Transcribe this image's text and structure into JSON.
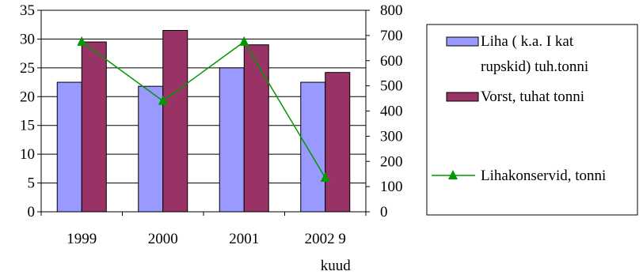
{
  "chart_data": {
    "type": "bar",
    "categories": [
      "1999",
      "2000",
      "2001",
      "2002 9\nkuud"
    ],
    "series": [
      {
        "name": "Liha ( k.a. I kat rupskid) tuh.tonni",
        "type": "bar",
        "axis": "left",
        "color": "#9999ff",
        "values": [
          22.5,
          21.8,
          25.0,
          22.5
        ]
      },
      {
        "name": "Vorst, tuhat tonni",
        "type": "bar",
        "axis": "left",
        "color": "#993366",
        "values": [
          29.5,
          31.5,
          29.0,
          24.2
        ]
      },
      {
        "name": "Lihakonservid, tonni",
        "type": "line",
        "axis": "right",
        "color": "#009900",
        "marker": "triangle",
        "values": [
          675,
          440,
          675,
          135
        ]
      }
    ],
    "left_axis": {
      "ylim": [
        0,
        35
      ],
      "ticks": [
        "0",
        "5",
        "10",
        "15",
        "20",
        "25",
        "30",
        "35"
      ]
    },
    "right_axis": {
      "ylim": [
        0,
        800
      ],
      "ticks": [
        "0",
        "100",
        "200",
        "300",
        "400",
        "500",
        "600",
        "700",
        "800"
      ]
    },
    "grid": true,
    "legend_position": "right",
    "legend": [
      {
        "label_lines": [
          "Liha ( k.a. I kat",
          "rupskid) tuh.tonni"
        ]
      },
      {
        "label_lines": [
          "Vorst, tuhat tonni"
        ]
      },
      {
        "label_lines": [
          "Lihakonservid, tonni"
        ]
      }
    ]
  }
}
